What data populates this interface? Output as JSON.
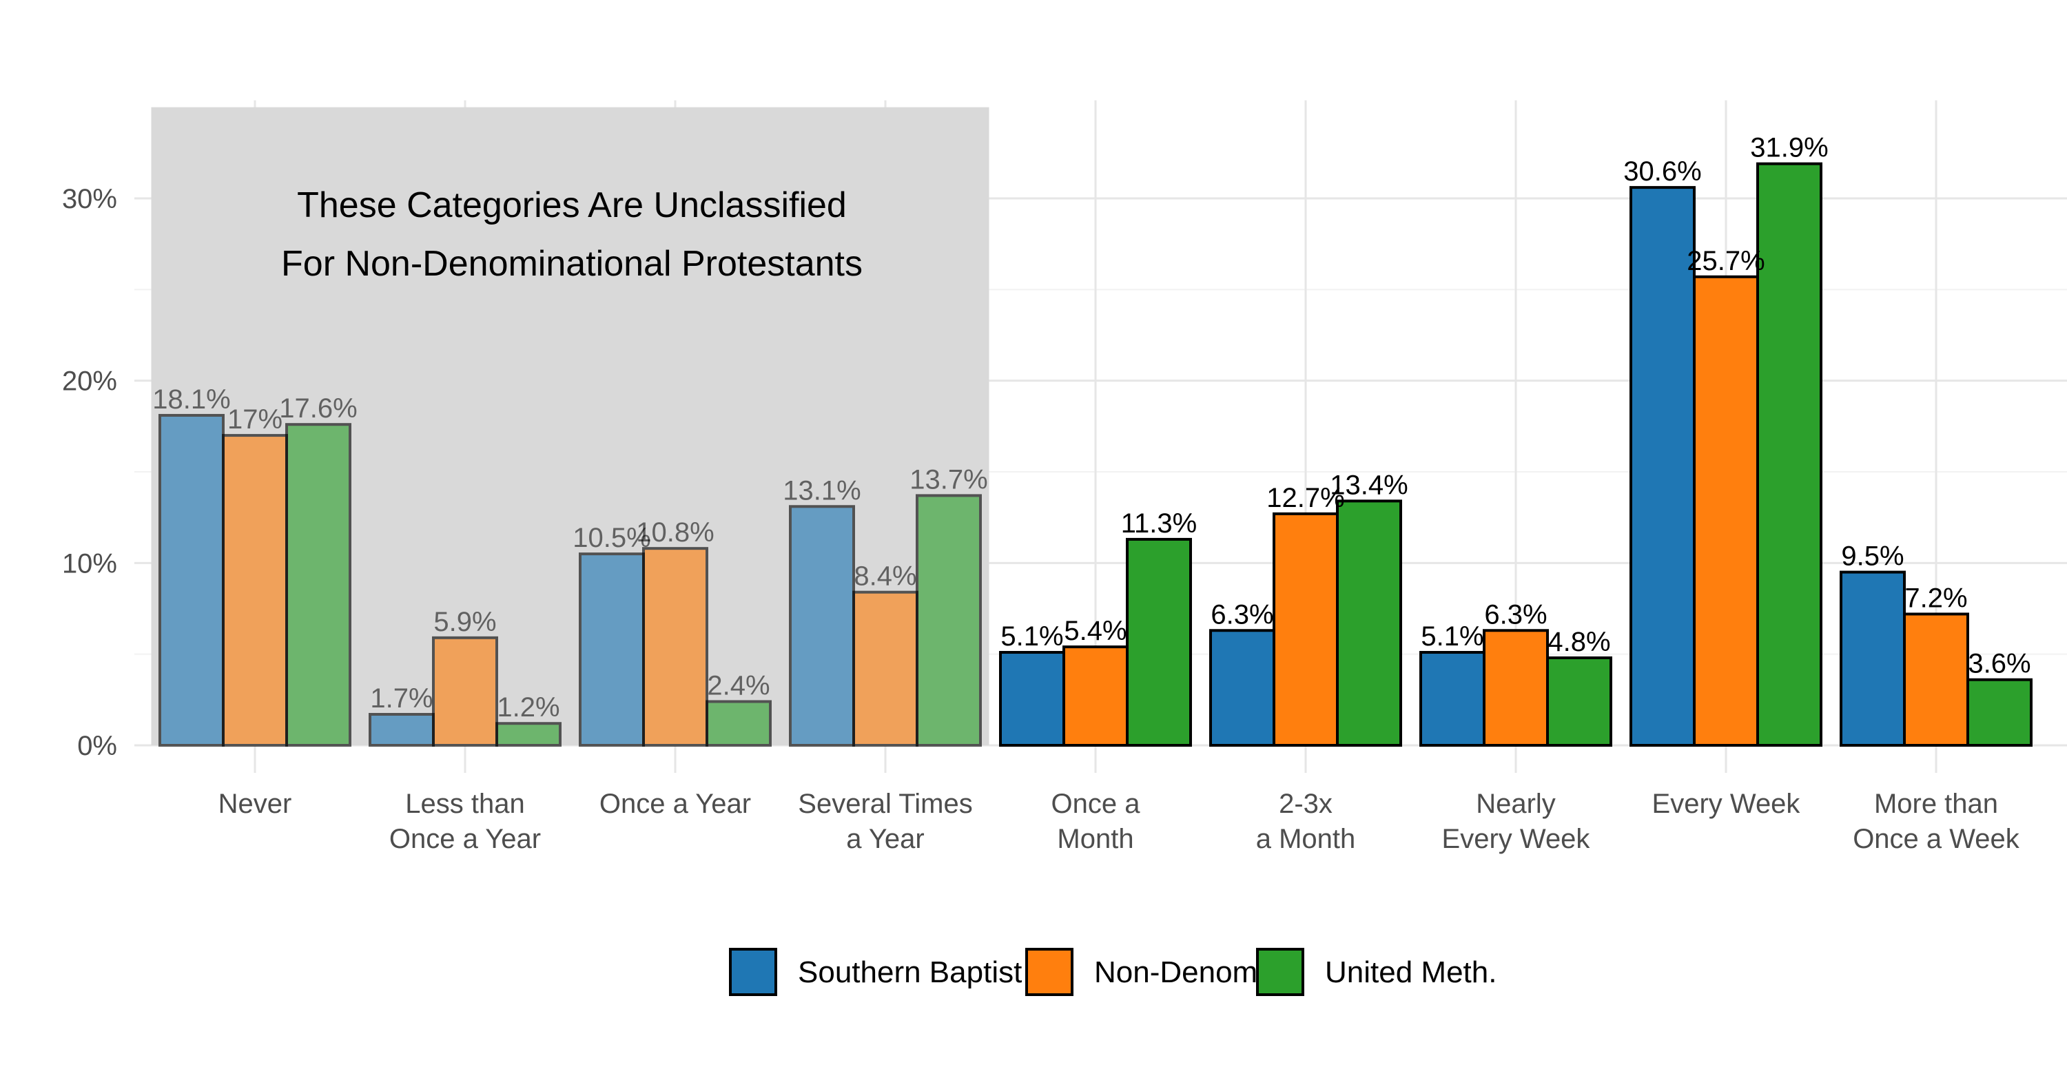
{
  "chart_data": {
    "type": "bar",
    "title": "",
    "xlabel": "",
    "ylabel": "",
    "ylim": [
      0,
      35
    ],
    "y_ticks": [
      "0%",
      "10%",
      "20%",
      "30%"
    ],
    "y_tick_values": [
      0,
      10,
      20,
      30
    ],
    "grid": true,
    "legend_position": "bottom",
    "categories": [
      [
        "Never"
      ],
      [
        "Less than",
        "Once a Year"
      ],
      [
        "Once a Year"
      ],
      [
        "Several Times",
        "a Year"
      ],
      [
        "Once a",
        "Month"
      ],
      [
        "2-3x",
        "a Month"
      ],
      [
        "Nearly",
        "Every Week"
      ],
      [
        "Every Week"
      ],
      [
        "More than",
        "Once a Week"
      ]
    ],
    "series": [
      {
        "name": "Southern Baptist",
        "color": "#1f77b4",
        "values": [
          18.1,
          1.7,
          10.5,
          13.1,
          5.1,
          6.3,
          5.1,
          30.6,
          9.5
        ],
        "labels": [
          "18.1%",
          "1.7%",
          "10.5%",
          "13.1%",
          "5.1%",
          "6.3%",
          "5.1%",
          "30.6%",
          "9.5%"
        ]
      },
      {
        "name": "Non-Denom",
        "color": "#ff7f0e",
        "values": [
          17.0,
          5.9,
          10.8,
          8.4,
          5.4,
          12.7,
          6.3,
          25.7,
          7.2
        ],
        "labels": [
          "17%",
          "5.9%",
          "10.8%",
          "8.4%",
          "5.4%",
          "12.7%",
          "6.3%",
          "25.7%",
          "7.2%"
        ]
      },
      {
        "name": "United Meth.",
        "color": "#2ca02c",
        "values": [
          17.6,
          1.2,
          2.4,
          13.7,
          11.3,
          13.4,
          4.8,
          31.9,
          3.6
        ],
        "labels": [
          "17.6%",
          "1.2%",
          "2.4%",
          "13.7%",
          "11.3%",
          "13.4%",
          "4.8%",
          "31.9%",
          "3.6%"
        ]
      }
    ],
    "shaded_categories": [
      0,
      1,
      2,
      3
    ],
    "shade_color": "#d9d9d9",
    "annotation": [
      "These Categories Are Unclassified",
      "For Non-Denominational Protestants"
    ]
  }
}
